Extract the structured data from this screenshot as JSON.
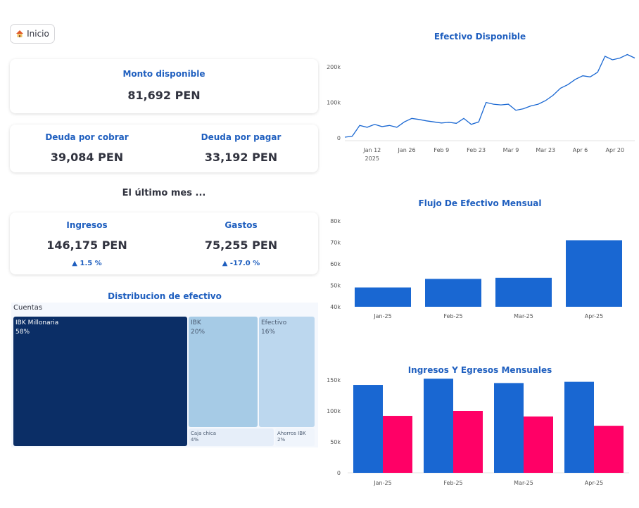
{
  "header": {
    "home_label": "Inicio"
  },
  "icons": {
    "home": "house-icon",
    "delta_up": "triangle-up-icon"
  },
  "colors": {
    "accent": "#1f5fbf",
    "bar_blue": "#1967d2",
    "bar_pink": "#ff0066",
    "treemap_dark": "#0b2e66",
    "treemap_mid": "#a6cbe6",
    "treemap_light": "#bcd7ee",
    "treemap_pale": "#e6eef9"
  },
  "metrics": {
    "monto": {
      "label": "Monto disponible",
      "value": "81,692 PEN"
    },
    "cobrar": {
      "label": "Deuda por cobrar",
      "value": "39,084 PEN"
    },
    "pagar": {
      "label": "Deuda por pagar",
      "value": "33,192 PEN"
    },
    "ultimo_mes_title": "El último mes ...",
    "ingresos": {
      "label": "Ingresos",
      "value": "146,175 PEN",
      "delta": "1.5 %"
    },
    "gastos": {
      "label": "Gastos",
      "value": "75,255 PEN",
      "delta": "-17.0 %"
    }
  },
  "treemap": {
    "title": "Distribucion de efectivo",
    "root": "Cuentas",
    "items": [
      {
        "name": "IBK Millonaria",
        "pct": "58%"
      },
      {
        "name": "IBK",
        "pct": "20%"
      },
      {
        "name": "Efectivo",
        "pct": "16%"
      },
      {
        "name": "Caja chica",
        "pct": "4%"
      },
      {
        "name": "Ahorros IBK",
        "pct": "2%"
      }
    ]
  },
  "chart_data": [
    {
      "type": "line",
      "title": "Efectivo Disponible",
      "xlabel": "",
      "ylabel": "",
      "x_ticks": [
        "Jan 12",
        "Jan 26",
        "Feb 9",
        "Feb 23",
        "Mar 9",
        "Mar 23",
        "Apr 6",
        "Apr 20"
      ],
      "x_tick_sublabel": "2025",
      "y_ticks": [
        "0",
        "100k",
        "200k"
      ],
      "ylim": [
        0,
        230000
      ],
      "x": [
        "2025-01-01",
        "2025-01-04",
        "2025-01-07",
        "2025-01-10",
        "2025-01-13",
        "2025-01-16",
        "2025-01-19",
        "2025-01-22",
        "2025-01-25",
        "2025-01-28",
        "2025-01-31",
        "2025-02-03",
        "2025-02-06",
        "2025-02-09",
        "2025-02-12",
        "2025-02-15",
        "2025-02-18",
        "2025-02-21",
        "2025-02-24",
        "2025-02-27",
        "2025-03-02",
        "2025-03-05",
        "2025-03-08",
        "2025-03-11",
        "2025-03-14",
        "2025-03-17",
        "2025-03-20",
        "2025-03-23",
        "2025-03-26",
        "2025-03-29",
        "2025-04-01",
        "2025-04-04",
        "2025-04-07",
        "2025-04-10",
        "2025-04-13",
        "2025-04-16",
        "2025-04-19",
        "2025-04-22",
        "2025-04-25",
        "2025-04-28"
      ],
      "values": [
        2000,
        5000,
        35000,
        30000,
        38000,
        32000,
        35000,
        30000,
        45000,
        55000,
        52000,
        48000,
        45000,
        42000,
        44000,
        41000,
        55000,
        38000,
        45000,
        100000,
        95000,
        93000,
        95000,
        78000,
        82000,
        90000,
        95000,
        105000,
        120000,
        140000,
        150000,
        165000,
        175000,
        172000,
        185000,
        230000,
        220000,
        225000,
        235000,
        225000
      ]
    },
    {
      "type": "bar",
      "title": "Flujo De Efectivo Mensual",
      "categories": [
        "Jan-25",
        "Feb-25",
        "Mar-25",
        "Apr-25"
      ],
      "values": [
        49000,
        53000,
        53500,
        71000
      ],
      "y_ticks": [
        "40k",
        "50k",
        "60k",
        "70k",
        "80k"
      ],
      "ylim": [
        40000,
        80000
      ]
    },
    {
      "type": "bar",
      "title": "Ingresos Y Egresos Mensuales",
      "categories": [
        "Jan-25",
        "Feb-25",
        "Mar-25",
        "Apr-25"
      ],
      "series": [
        {
          "values": [
            142000,
            152000,
            145000,
            147000
          ]
        },
        {
          "values": [
            92000,
            100000,
            91000,
            76000
          ]
        }
      ],
      "y_ticks": [
        "0",
        "50k",
        "100k",
        "150k"
      ],
      "ylim": [
        0,
        150000
      ]
    }
  ]
}
